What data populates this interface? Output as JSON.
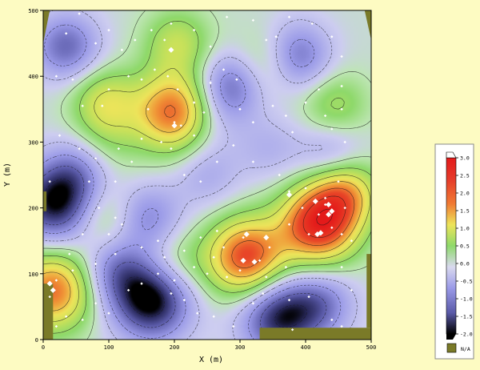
{
  "chart_data": {
    "type": "heatmap",
    "title": "",
    "xlabel": "X (m)",
    "ylabel": "Y (m)",
    "xlim": [
      0,
      500
    ],
    "ylim": [
      0,
      500
    ],
    "x_ticks": [
      "0",
      "100",
      "200",
      "300",
      "400",
      "500"
    ],
    "y_ticks": [
      "0",
      "100",
      "200",
      "300",
      "400",
      "500"
    ],
    "contour_interval": 0.5,
    "grid": false,
    "legend": {
      "placement": "right",
      "ticks": [
        "3.0",
        "2.5",
        "2.0",
        "1.5",
        "1.0",
        "0.5",
        "0.0",
        "-0.5",
        "-1.0",
        "-1.5",
        "-2.0"
      ],
      "range": [
        -2.0,
        3.0
      ],
      "na_label": "N/A",
      "colors": {
        "high": "#e41a1a",
        "mid_high": "#f07a33",
        "mid": "#ede45a",
        "low_pos": "#8ed96a",
        "zero": "#d9d9ee",
        "neg": "#9a9ae8",
        "low_neg": "#5a5aa8",
        "min": "#000000",
        "na": "#7a7a28"
      }
    },
    "field_peaks": [
      {
        "x": 420,
        "y": 175,
        "value": 2.8
      },
      {
        "x": 310,
        "y": 125,
        "value": 2.5
      },
      {
        "x": 200,
        "y": 345,
        "value": 2.3
      },
      {
        "x": 15,
        "y": 75,
        "value": 2.2
      },
      {
        "x": 460,
        "y": 225,
        "value": 1.6
      },
      {
        "x": 95,
        "y": 360,
        "value": 1.2
      },
      {
        "x": 205,
        "y": 450,
        "value": 1.0
      },
      {
        "x": 345,
        "y": 420,
        "value": 0.8
      },
      {
        "x": 445,
        "y": 355,
        "value": 0.8
      },
      {
        "x": 90,
        "y": 185,
        "value": 0.7
      },
      {
        "x": 200,
        "y": 115,
        "value": 0.6
      },
      {
        "x": 100,
        "y": 300,
        "value": 0.4
      },
      {
        "x": 165,
        "y": 60,
        "value": -2.2
      },
      {
        "x": 20,
        "y": 205,
        "value": -2.0
      },
      {
        "x": 360,
        "y": 35,
        "value": -1.9
      },
      {
        "x": 385,
        "y": 430,
        "value": -1.4
      },
      {
        "x": 35,
        "y": 445,
        "value": -1.3
      },
      {
        "x": 285,
        "y": 385,
        "value": -1.3
      },
      {
        "x": 160,
        "y": 185,
        "value": -1.0
      },
      {
        "x": 110,
        "y": 105,
        "value": -1.0
      },
      {
        "x": 425,
        "y": 55,
        "value": -1.0
      },
      {
        "x": 440,
        "y": 280,
        "value": -0.8
      },
      {
        "x": 50,
        "y": 255,
        "value": -0.8
      },
      {
        "x": 345,
        "y": 290,
        "value": -0.5
      },
      {
        "x": 255,
        "y": 330,
        "value": -0.4
      },
      {
        "x": 250,
        "y": 250,
        "value": -0.6
      }
    ],
    "sample_points": [
      [
        35,
        465
      ],
      [
        55,
        495
      ],
      [
        80,
        450
      ],
      [
        100,
        470
      ],
      [
        120,
        440
      ],
      [
        140,
        455
      ],
      [
        165,
        470
      ],
      [
        185,
        455
      ],
      [
        195,
        480
      ],
      [
        230,
        470
      ],
      [
        255,
        445
      ],
      [
        280,
        490
      ],
      [
        320,
        485
      ],
      [
        340,
        455
      ],
      [
        355,
        460
      ],
      [
        375,
        490
      ],
      [
        410,
        480
      ],
      [
        440,
        460
      ],
      [
        455,
        430
      ],
      [
        455,
        385
      ],
      [
        20,
        400
      ],
      [
        45,
        395
      ],
      [
        60,
        355
      ],
      [
        90,
        355
      ],
      [
        100,
        380
      ],
      [
        130,
        400
      ],
      [
        150,
        395
      ],
      [
        160,
        350
      ],
      [
        170,
        410
      ],
      [
        190,
        400
      ],
      [
        205,
        380
      ],
      [
        200,
        330
      ],
      [
        210,
        325
      ],
      [
        230,
        310
      ],
      [
        230,
        360
      ],
      [
        245,
        345
      ],
      [
        255,
        390
      ],
      [
        275,
        410
      ],
      [
        295,
        395
      ],
      [
        300,
        350
      ],
      [
        320,
        330
      ],
      [
        350,
        355
      ],
      [
        370,
        340
      ],
      [
        380,
        315
      ],
      [
        400,
        360
      ],
      [
        420,
        380
      ],
      [
        430,
        340
      ],
      [
        440,
        320
      ],
      [
        460,
        300
      ],
      [
        455,
        350
      ],
      [
        25,
        310
      ],
      [
        55,
        290
      ],
      [
        80,
        275
      ],
      [
        70,
        240
      ],
      [
        110,
        240
      ],
      [
        115,
        290
      ],
      [
        135,
        270
      ],
      [
        150,
        305
      ],
      [
        180,
        300
      ],
      [
        195,
        290
      ],
      [
        215,
        250
      ],
      [
        240,
        240
      ],
      [
        265,
        270
      ],
      [
        290,
        295
      ],
      [
        320,
        270
      ],
      [
        360,
        250
      ],
      [
        375,
        225
      ],
      [
        400,
        230
      ],
      [
        430,
        215
      ],
      [
        450,
        240
      ],
      [
        460,
        200
      ],
      [
        440,
        170
      ],
      [
        470,
        150
      ],
      [
        10,
        240
      ],
      [
        40,
        130
      ],
      [
        60,
        160
      ],
      [
        85,
        200
      ],
      [
        100,
        160
      ],
      [
        110,
        185
      ],
      [
        120,
        175
      ],
      [
        150,
        140
      ],
      [
        175,
        150
      ],
      [
        185,
        125
      ],
      [
        200,
        90
      ],
      [
        230,
        110
      ],
      [
        250,
        100
      ],
      [
        265,
        165
      ],
      [
        275,
        140
      ],
      [
        280,
        95
      ],
      [
        300,
        105
      ],
      [
        305,
        155
      ],
      [
        330,
        120
      ],
      [
        340,
        95
      ],
      [
        345,
        140
      ],
      [
        370,
        110
      ],
      [
        375,
        175
      ],
      [
        395,
        200
      ],
      [
        405,
        160
      ],
      [
        420,
        190
      ],
      [
        430,
        205
      ],
      [
        455,
        160
      ],
      [
        20,
        20
      ],
      [
        35,
        35
      ],
      [
        60,
        30
      ],
      [
        80,
        55
      ],
      [
        100,
        40
      ],
      [
        130,
        75
      ],
      [
        150,
        85
      ],
      [
        175,
        100
      ],
      [
        195,
        70
      ],
      [
        215,
        60
      ],
      [
        235,
        40
      ],
      [
        260,
        35
      ],
      [
        290,
        20
      ],
      [
        320,
        55
      ],
      [
        335,
        70
      ],
      [
        375,
        60
      ],
      [
        380,
        15
      ],
      [
        405,
        65
      ],
      [
        440,
        30
      ],
      [
        455,
        20
      ],
      [
        470,
        75
      ],
      [
        455,
        110
      ],
      [
        20,
        90
      ],
      [
        10,
        65
      ],
      [
        45,
        105
      ],
      [
        80,
        115
      ],
      [
        110,
        130
      ],
      [
        215,
        135
      ],
      [
        240,
        155
      ],
      [
        260,
        125
      ]
    ],
    "large_markers": [
      [
        310,
        160
      ],
      [
        305,
        120
      ],
      [
        322,
        118
      ],
      [
        340,
        155
      ],
      [
        418,
        160
      ],
      [
        423,
        162
      ],
      [
        415,
        210
      ],
      [
        435,
        205
      ],
      [
        435,
        190
      ],
      [
        440,
        195
      ],
      [
        375,
        220
      ],
      [
        200,
        325
      ],
      [
        195,
        440
      ],
      [
        10,
        85
      ],
      [
        15,
        75
      ]
    ]
  }
}
